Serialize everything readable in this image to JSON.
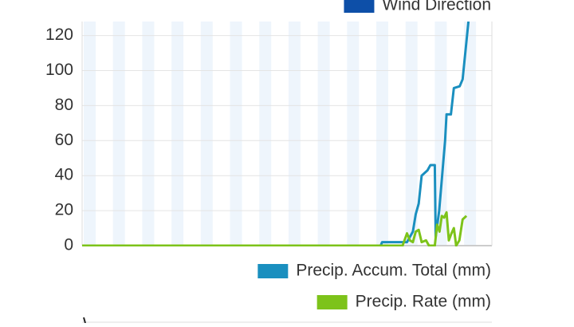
{
  "chart_data": {
    "type": "line",
    "xlim": [
      0,
      140
    ],
    "ylim": [
      0,
      128
    ],
    "yticks": [
      0,
      20,
      40,
      60,
      80,
      100,
      120
    ],
    "grid": true,
    "legend": "right",
    "series": [
      {
        "name": "Wind Direction",
        "color": "#0d4fa8",
        "x": [],
        "values": []
      },
      {
        "name": "Precip. Accum. Total (mm)",
        "color": "#1a8fbf",
        "x": [
          0,
          102,
          102.5,
          111,
          113,
          114,
          115,
          116,
          118,
          119,
          120.5,
          120.8,
          122,
          124,
          124.5,
          126,
          127,
          129,
          130,
          132
        ],
        "values": [
          0,
          0,
          2,
          2,
          8,
          18,
          24,
          40,
          43,
          46,
          46,
          5,
          20,
          60,
          75,
          75,
          90,
          91,
          95,
          128
        ]
      },
      {
        "name": "Precip. Rate (mm)",
        "color": "#7dc31a",
        "x": [
          0,
          100,
          109.5,
          111,
          112,
          113,
          114,
          115,
          116,
          117.5,
          118.5,
          120.5,
          121.3,
          122.1,
          122.9,
          123.7,
          124.5,
          125.3,
          126.2,
          127,
          127.8,
          128.9,
          130,
          131.3
        ],
        "values": [
          0,
          0,
          0,
          7,
          3,
          2,
          8,
          9,
          2,
          3,
          0,
          0,
          12,
          8,
          17,
          16,
          19,
          3,
          7,
          10,
          0,
          3,
          15,
          17
        ]
      }
    ]
  }
}
